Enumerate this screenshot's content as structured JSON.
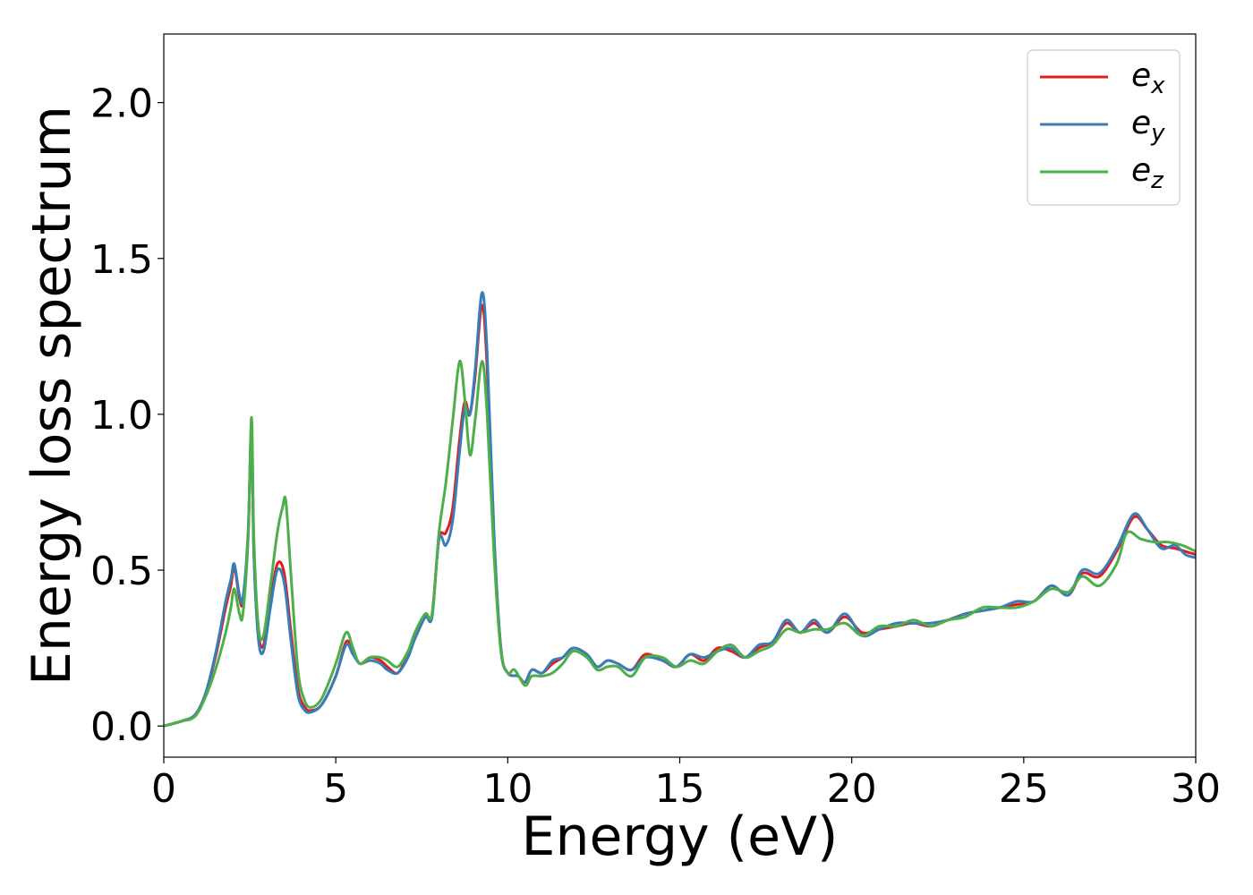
{
  "chart_data": {
    "type": "line",
    "title": "",
    "xlabel": "Energy (eV)",
    "ylabel": "Energy loss spectrum",
    "xlim": [
      0,
      30
    ],
    "ylim": [
      -0.1,
      2.22
    ],
    "xticks": [
      0,
      5,
      10,
      15,
      20,
      25,
      30
    ],
    "xtick_labels": [
      "0",
      "5",
      "10",
      "15",
      "20",
      "25",
      "30"
    ],
    "yticks": [
      0.0,
      0.5,
      1.0,
      1.5,
      2.0
    ],
    "ytick_labels": [
      "0.0",
      "0.5",
      "1.0",
      "1.5",
      "2.0"
    ],
    "grid": false,
    "legend_position": "top-right",
    "series": [
      {
        "name": "e_x",
        "legend_main": "e",
        "legend_sub": "x",
        "color": "#e41a1c",
        "points": [
          [
            0,
            0.0
          ],
          [
            0.5,
            0.015
          ],
          [
            0.9,
            0.035
          ],
          [
            1.2,
            0.1
          ],
          [
            1.5,
            0.22
          ],
          [
            1.8,
            0.38
          ],
          [
            1.95,
            0.45
          ],
          [
            2.05,
            0.51
          ],
          [
            2.2,
            0.41
          ],
          [
            2.3,
            0.4
          ],
          [
            2.45,
            0.6
          ],
          [
            2.55,
            0.95
          ],
          [
            2.62,
            0.55
          ],
          [
            2.75,
            0.3
          ],
          [
            2.9,
            0.26
          ],
          [
            3.1,
            0.4
          ],
          [
            3.3,
            0.52
          ],
          [
            3.5,
            0.49
          ],
          [
            3.7,
            0.3
          ],
          [
            3.9,
            0.12
          ],
          [
            4.1,
            0.06
          ],
          [
            4.3,
            0.05
          ],
          [
            4.6,
            0.07
          ],
          [
            5.0,
            0.16
          ],
          [
            5.3,
            0.27
          ],
          [
            5.5,
            0.24
          ],
          [
            5.7,
            0.2
          ],
          [
            6.0,
            0.22
          ],
          [
            6.3,
            0.21
          ],
          [
            6.5,
            0.19
          ],
          [
            6.8,
            0.17
          ],
          [
            7.1,
            0.23
          ],
          [
            7.3,
            0.28
          ],
          [
            7.6,
            0.35
          ],
          [
            7.8,
            0.36
          ],
          [
            8.0,
            0.6
          ],
          [
            8.2,
            0.62
          ],
          [
            8.4,
            0.7
          ],
          [
            8.6,
            0.92
          ],
          [
            8.75,
            1.04
          ],
          [
            8.9,
            1.0
          ],
          [
            9.05,
            1.12
          ],
          [
            9.25,
            1.35
          ],
          [
            9.4,
            1.15
          ],
          [
            9.6,
            0.6
          ],
          [
            9.8,
            0.25
          ],
          [
            10.0,
            0.17
          ],
          [
            10.3,
            0.16
          ],
          [
            10.5,
            0.14
          ],
          [
            10.7,
            0.18
          ],
          [
            11.0,
            0.17
          ],
          [
            11.3,
            0.2
          ],
          [
            11.6,
            0.22
          ],
          [
            11.9,
            0.25
          ],
          [
            12.3,
            0.23
          ],
          [
            12.6,
            0.19
          ],
          [
            12.9,
            0.21
          ],
          [
            13.2,
            0.2
          ],
          [
            13.6,
            0.18
          ],
          [
            14.0,
            0.23
          ],
          [
            14.5,
            0.21
          ],
          [
            14.9,
            0.19
          ],
          [
            15.3,
            0.23
          ],
          [
            15.7,
            0.21
          ],
          [
            16.1,
            0.25
          ],
          [
            16.5,
            0.24
          ],
          [
            16.9,
            0.22
          ],
          [
            17.3,
            0.25
          ],
          [
            17.7,
            0.27
          ],
          [
            18.1,
            0.33
          ],
          [
            18.5,
            0.3
          ],
          [
            18.9,
            0.33
          ],
          [
            19.3,
            0.3
          ],
          [
            19.8,
            0.35
          ],
          [
            20.3,
            0.3
          ],
          [
            20.8,
            0.31
          ],
          [
            21.3,
            0.32
          ],
          [
            21.8,
            0.33
          ],
          [
            22.3,
            0.32
          ],
          [
            22.8,
            0.34
          ],
          [
            23.3,
            0.36
          ],
          [
            23.8,
            0.37
          ],
          [
            24.3,
            0.38
          ],
          [
            24.8,
            0.39
          ],
          [
            25.3,
            0.4
          ],
          [
            25.8,
            0.45
          ],
          [
            26.3,
            0.42
          ],
          [
            26.7,
            0.49
          ],
          [
            27.2,
            0.48
          ],
          [
            27.7,
            0.56
          ],
          [
            28.2,
            0.67
          ],
          [
            28.6,
            0.63
          ],
          [
            29.0,
            0.58
          ],
          [
            29.4,
            0.57
          ],
          [
            29.7,
            0.56
          ],
          [
            30.0,
            0.55
          ]
        ]
      },
      {
        "name": "e_y",
        "legend_main": "e",
        "legend_sub": "y",
        "color": "#377eb8",
        "points": [
          [
            0,
            0.0
          ],
          [
            0.5,
            0.015
          ],
          [
            0.9,
            0.035
          ],
          [
            1.2,
            0.1
          ],
          [
            1.5,
            0.23
          ],
          [
            1.8,
            0.4
          ],
          [
            1.95,
            0.47
          ],
          [
            2.05,
            0.52
          ],
          [
            2.2,
            0.42
          ],
          [
            2.3,
            0.41
          ],
          [
            2.45,
            0.62
          ],
          [
            2.55,
            0.96
          ],
          [
            2.62,
            0.55
          ],
          [
            2.75,
            0.28
          ],
          [
            2.9,
            0.24
          ],
          [
            3.1,
            0.38
          ],
          [
            3.3,
            0.5
          ],
          [
            3.5,
            0.46
          ],
          [
            3.7,
            0.27
          ],
          [
            3.9,
            0.1
          ],
          [
            4.1,
            0.05
          ],
          [
            4.3,
            0.045
          ],
          [
            4.6,
            0.07
          ],
          [
            5.0,
            0.16
          ],
          [
            5.3,
            0.26
          ],
          [
            5.5,
            0.23
          ],
          [
            5.7,
            0.2
          ],
          [
            6.0,
            0.21
          ],
          [
            6.3,
            0.2
          ],
          [
            6.5,
            0.18
          ],
          [
            6.8,
            0.17
          ],
          [
            7.1,
            0.22
          ],
          [
            7.3,
            0.28
          ],
          [
            7.6,
            0.35
          ],
          [
            7.8,
            0.35
          ],
          [
            8.0,
            0.6
          ],
          [
            8.2,
            0.58
          ],
          [
            8.4,
            0.66
          ],
          [
            8.6,
            0.88
          ],
          [
            8.75,
            1.02
          ],
          [
            8.9,
            1.0
          ],
          [
            9.05,
            1.14
          ],
          [
            9.25,
            1.39
          ],
          [
            9.4,
            1.2
          ],
          [
            9.6,
            0.62
          ],
          [
            9.8,
            0.25
          ],
          [
            10.0,
            0.17
          ],
          [
            10.3,
            0.16
          ],
          [
            10.5,
            0.14
          ],
          [
            10.7,
            0.18
          ],
          [
            11.0,
            0.17
          ],
          [
            11.3,
            0.21
          ],
          [
            11.6,
            0.22
          ],
          [
            11.9,
            0.25
          ],
          [
            12.3,
            0.23
          ],
          [
            12.6,
            0.19
          ],
          [
            12.9,
            0.21
          ],
          [
            13.2,
            0.2
          ],
          [
            13.6,
            0.18
          ],
          [
            14.0,
            0.22
          ],
          [
            14.5,
            0.21
          ],
          [
            14.9,
            0.19
          ],
          [
            15.3,
            0.23
          ],
          [
            15.7,
            0.22
          ],
          [
            16.1,
            0.24
          ],
          [
            16.5,
            0.25
          ],
          [
            16.9,
            0.22
          ],
          [
            17.3,
            0.26
          ],
          [
            17.7,
            0.27
          ],
          [
            18.1,
            0.34
          ],
          [
            18.5,
            0.3
          ],
          [
            18.9,
            0.34
          ],
          [
            19.3,
            0.3
          ],
          [
            19.8,
            0.36
          ],
          [
            20.3,
            0.29
          ],
          [
            20.8,
            0.31
          ],
          [
            21.3,
            0.33
          ],
          [
            21.8,
            0.33
          ],
          [
            22.3,
            0.33
          ],
          [
            22.8,
            0.34
          ],
          [
            23.3,
            0.36
          ],
          [
            23.8,
            0.37
          ],
          [
            24.3,
            0.38
          ],
          [
            24.8,
            0.4
          ],
          [
            25.3,
            0.4
          ],
          [
            25.8,
            0.45
          ],
          [
            26.3,
            0.42
          ],
          [
            26.7,
            0.5
          ],
          [
            27.2,
            0.49
          ],
          [
            27.7,
            0.57
          ],
          [
            28.2,
            0.68
          ],
          [
            28.6,
            0.63
          ],
          [
            29.0,
            0.57
          ],
          [
            29.4,
            0.58
          ],
          [
            29.7,
            0.55
          ],
          [
            30.0,
            0.54
          ]
        ]
      },
      {
        "name": "e_z",
        "legend_main": "e",
        "legend_sub": "z",
        "color": "#4daf4a",
        "points": [
          [
            0,
            0.0
          ],
          [
            0.5,
            0.015
          ],
          [
            0.9,
            0.03
          ],
          [
            1.2,
            0.09
          ],
          [
            1.5,
            0.18
          ],
          [
            1.8,
            0.3
          ],
          [
            1.95,
            0.38
          ],
          [
            2.05,
            0.44
          ],
          [
            2.2,
            0.36
          ],
          [
            2.3,
            0.36
          ],
          [
            2.45,
            0.6
          ],
          [
            2.55,
            0.99
          ],
          [
            2.62,
            0.6
          ],
          [
            2.75,
            0.32
          ],
          [
            2.9,
            0.29
          ],
          [
            3.1,
            0.45
          ],
          [
            3.3,
            0.62
          ],
          [
            3.45,
            0.7
          ],
          [
            3.55,
            0.72
          ],
          [
            3.7,
            0.48
          ],
          [
            3.9,
            0.18
          ],
          [
            4.1,
            0.08
          ],
          [
            4.3,
            0.06
          ],
          [
            4.6,
            0.09
          ],
          [
            5.0,
            0.2
          ],
          [
            5.3,
            0.3
          ],
          [
            5.5,
            0.25
          ],
          [
            5.7,
            0.2
          ],
          [
            6.0,
            0.22
          ],
          [
            6.3,
            0.22
          ],
          [
            6.5,
            0.21
          ],
          [
            6.8,
            0.19
          ],
          [
            7.1,
            0.24
          ],
          [
            7.3,
            0.3
          ],
          [
            7.6,
            0.36
          ],
          [
            7.8,
            0.36
          ],
          [
            8.0,
            0.62
          ],
          [
            8.2,
            0.78
          ],
          [
            8.4,
            0.98
          ],
          [
            8.6,
            1.17
          ],
          [
            8.75,
            1.05
          ],
          [
            8.9,
            0.87
          ],
          [
            9.05,
            0.98
          ],
          [
            9.25,
            1.17
          ],
          [
            9.4,
            1.0
          ],
          [
            9.6,
            0.55
          ],
          [
            9.8,
            0.24
          ],
          [
            10.0,
            0.17
          ],
          [
            10.2,
            0.18
          ],
          [
            10.5,
            0.13
          ],
          [
            10.7,
            0.16
          ],
          [
            11.0,
            0.16
          ],
          [
            11.3,
            0.17
          ],
          [
            11.6,
            0.2
          ],
          [
            11.9,
            0.24
          ],
          [
            12.3,
            0.22
          ],
          [
            12.6,
            0.18
          ],
          [
            12.9,
            0.19
          ],
          [
            13.2,
            0.19
          ],
          [
            13.6,
            0.16
          ],
          [
            14.0,
            0.22
          ],
          [
            14.5,
            0.22
          ],
          [
            14.9,
            0.19
          ],
          [
            15.3,
            0.21
          ],
          [
            15.7,
            0.2
          ],
          [
            16.1,
            0.24
          ],
          [
            16.5,
            0.26
          ],
          [
            16.9,
            0.22
          ],
          [
            17.3,
            0.24
          ],
          [
            17.7,
            0.26
          ],
          [
            18.1,
            0.31
          ],
          [
            18.5,
            0.3
          ],
          [
            18.9,
            0.31
          ],
          [
            19.3,
            0.31
          ],
          [
            19.8,
            0.33
          ],
          [
            20.3,
            0.29
          ],
          [
            20.8,
            0.32
          ],
          [
            21.3,
            0.32
          ],
          [
            21.8,
            0.34
          ],
          [
            22.3,
            0.32
          ],
          [
            22.8,
            0.34
          ],
          [
            23.3,
            0.35
          ],
          [
            23.8,
            0.38
          ],
          [
            24.3,
            0.38
          ],
          [
            24.8,
            0.38
          ],
          [
            25.3,
            0.4
          ],
          [
            25.8,
            0.44
          ],
          [
            26.3,
            0.43
          ],
          [
            26.7,
            0.48
          ],
          [
            27.2,
            0.45
          ],
          [
            27.7,
            0.52
          ],
          [
            28.0,
            0.62
          ],
          [
            28.4,
            0.6
          ],
          [
            28.8,
            0.59
          ],
          [
            29.2,
            0.59
          ],
          [
            29.6,
            0.58
          ],
          [
            30.0,
            0.56
          ]
        ]
      }
    ]
  }
}
